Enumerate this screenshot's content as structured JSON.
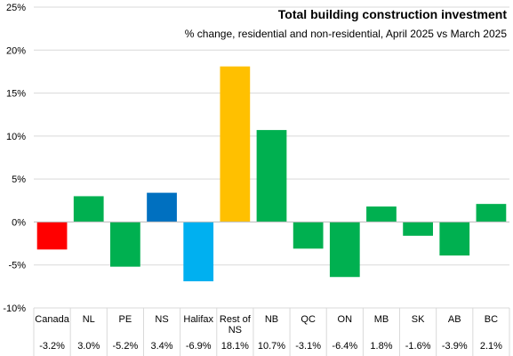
{
  "chart_data": {
    "type": "bar",
    "title": "Total building construction investment",
    "subtitle": "% change, residential and non-residential, April 2025 vs March 2025",
    "categories": [
      "Canada",
      "NL",
      "PE",
      "NS",
      "Halifax",
      "Rest of NS",
      "NB",
      "QC",
      "ON",
      "MB",
      "SK",
      "AB",
      "BC"
    ],
    "values": [
      -3.2,
      3.0,
      -5.2,
      3.4,
      -6.9,
      18.1,
      10.7,
      -3.1,
      -6.4,
      1.8,
      -1.6,
      -3.9,
      2.1
    ],
    "value_labels": [
      "-3.2%",
      "3.0%",
      "-5.2%",
      "3.4%",
      "-6.9%",
      "18.1%",
      "10.7%",
      "-3.1%",
      "-6.4%",
      "1.8%",
      "-1.6%",
      "-3.9%",
      "2.1%"
    ],
    "colors": [
      "#ff0000",
      "#00b050",
      "#00b050",
      "#0070c0",
      "#00b0f0",
      "#ffc000",
      "#00b050",
      "#00b050",
      "#00b050",
      "#00b050",
      "#00b050",
      "#00b050",
      "#00b050"
    ],
    "yticks": [
      -10,
      -5,
      0,
      5,
      10,
      15,
      20,
      25
    ],
    "ytick_labels": [
      "-10%",
      "-5%",
      "0%",
      "5%",
      "10%",
      "15%",
      "20%",
      "25%"
    ],
    "ylim": [
      -10,
      25
    ],
    "grid": true,
    "legend": "none"
  }
}
